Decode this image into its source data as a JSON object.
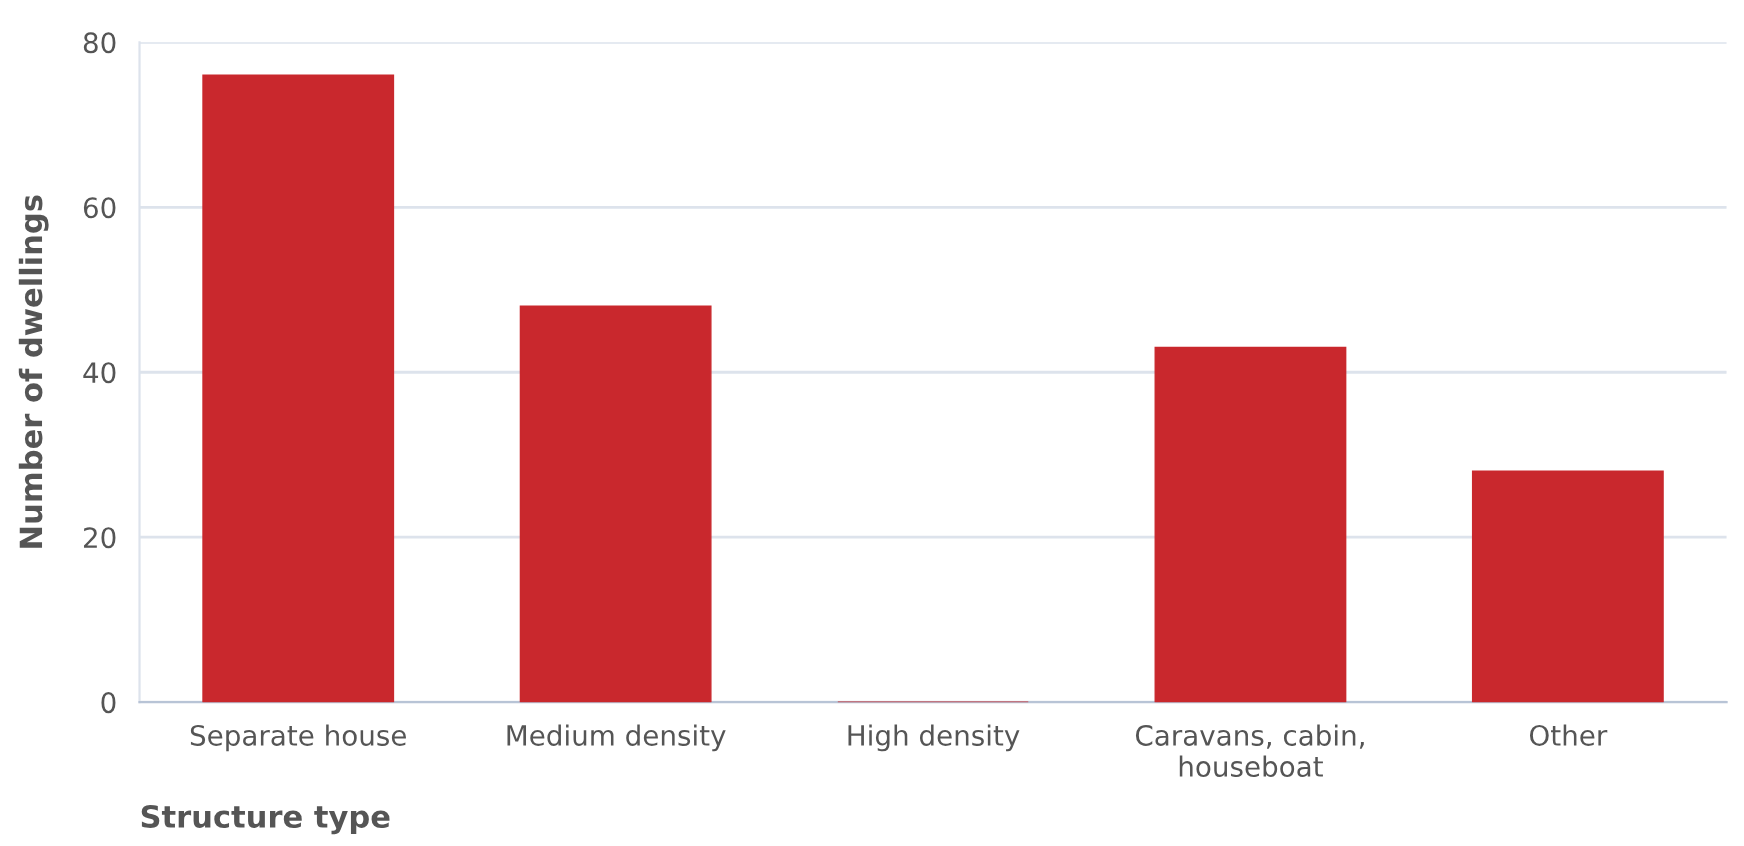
{
  "chart_data": {
    "type": "bar",
    "xlabel": "Structure type",
    "ylabel": "Number of dwellings",
    "categories": [
      "Separate house",
      "Medium density",
      "High density",
      "Caravans, cabin,\nhouseboat",
      "Other"
    ],
    "values": [
      76,
      48,
      0,
      43,
      28
    ],
    "color": "#c9282d",
    "ylim": [
      0,
      80
    ],
    "yticks": [
      0,
      20,
      40,
      60,
      80
    ],
    "grid": "y",
    "legend": false
  }
}
